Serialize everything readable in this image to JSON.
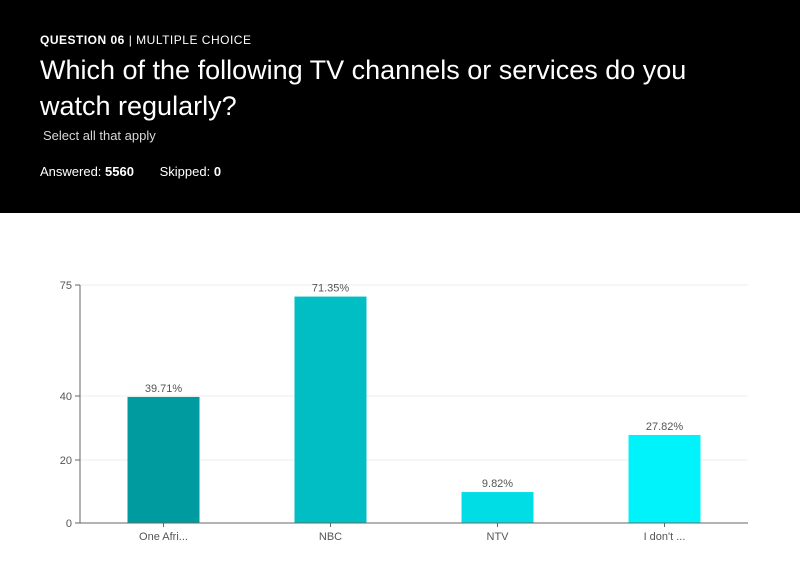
{
  "question": {
    "number_label": "QUESTION 06",
    "type_label": "MULTIPLE CHOICE",
    "title": "Which of the following TV channels or services do you watch regularly?",
    "subtitle": "Select all that apply",
    "answered_label": "Answered:",
    "answered_value": "5560",
    "skipped_label": "Skipped:",
    "skipped_value": "0"
  },
  "chart_data": {
    "type": "bar",
    "categories": [
      "One Afri...",
      "NBC",
      "NTV",
      "I don't ..."
    ],
    "values": [
      39.71,
      71.35,
      9.82,
      27.82
    ],
    "value_labels": [
      "39.71%",
      "71.35%",
      "9.82%",
      "27.82%"
    ],
    "colors": [
      "#009b9e",
      "#00bec4",
      "#00dde4",
      "#00f2fa"
    ],
    "yticks": [
      0,
      20,
      40,
      75
    ],
    "ylim": [
      0,
      75
    ],
    "grid": true
  }
}
